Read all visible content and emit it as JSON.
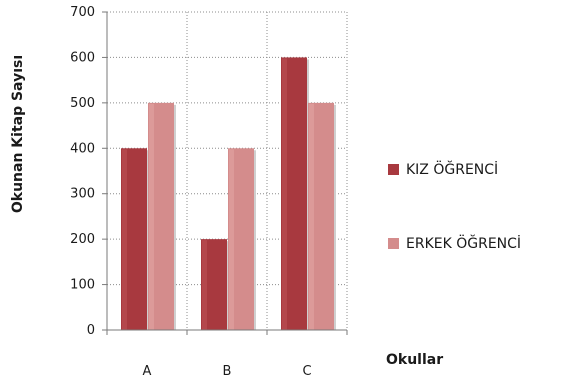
{
  "chart_data": {
    "type": "bar",
    "categories": [
      "A",
      "B",
      "C"
    ],
    "series": [
      {
        "name": "KIZ ÖĞRENCİ",
        "values": [
          400,
          200,
          600
        ],
        "color": "#a8393f",
        "highlight": "#c4595d"
      },
      {
        "name": "ERKEK ÖĞRENCİ",
        "values": [
          500,
          400,
          500
        ],
        "color": "#d48c8c",
        "highlight": "#e6aaa9"
      }
    ],
    "title": "",
    "xlabel": "Okullar",
    "ylabel": "Okunan Kitap  Sayısı",
    "ylim": [
      0,
      700
    ],
    "yticks": [
      0,
      100,
      200,
      300,
      400,
      500,
      600,
      700
    ],
    "grid": true,
    "legend_position": "right"
  }
}
